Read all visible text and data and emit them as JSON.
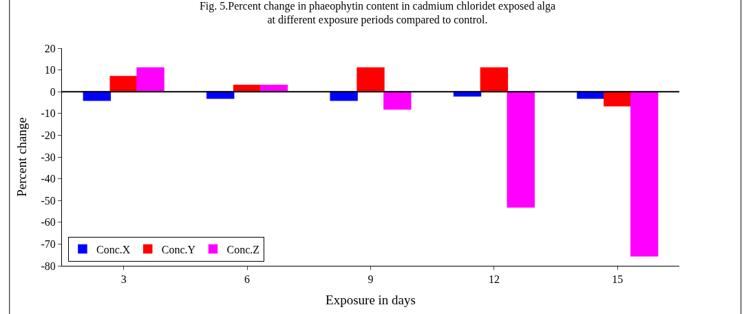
{
  "chart_data": {
    "type": "bar",
    "title": "Fig. 5.Percent change in phaeophytin content in cadmium chloridet exposed alga at different exposure periods compared to control.",
    "xlabel": "Exposure in days",
    "ylabel": "Percent change",
    "categories": [
      "3",
      "6",
      "9",
      "12",
      "15"
    ],
    "series": [
      {
        "name": "Conc.X",
        "color": "#0000ff",
        "values": [
          -4,
          -3,
          -4,
          -2,
          -3
        ]
      },
      {
        "name": "Conc.Y",
        "color": "#ff0000",
        "values": [
          7,
          3,
          11,
          11,
          -6.5
        ]
      },
      {
        "name": "Conc.Z",
        "color": "#ff00ff",
        "values": [
          11,
          3,
          -8,
          -53,
          -75.5
        ]
      }
    ],
    "ylim": [
      -80,
      20
    ],
    "yticks": [
      -80,
      -70,
      -60,
      -50,
      -40,
      -30,
      -20,
      -10,
      0,
      10,
      20
    ],
    "ref_lines": [
      {
        "axis": "y",
        "value": 0,
        "color": "#000000"
      }
    ],
    "grid": false,
    "legend": "bottom left"
  }
}
